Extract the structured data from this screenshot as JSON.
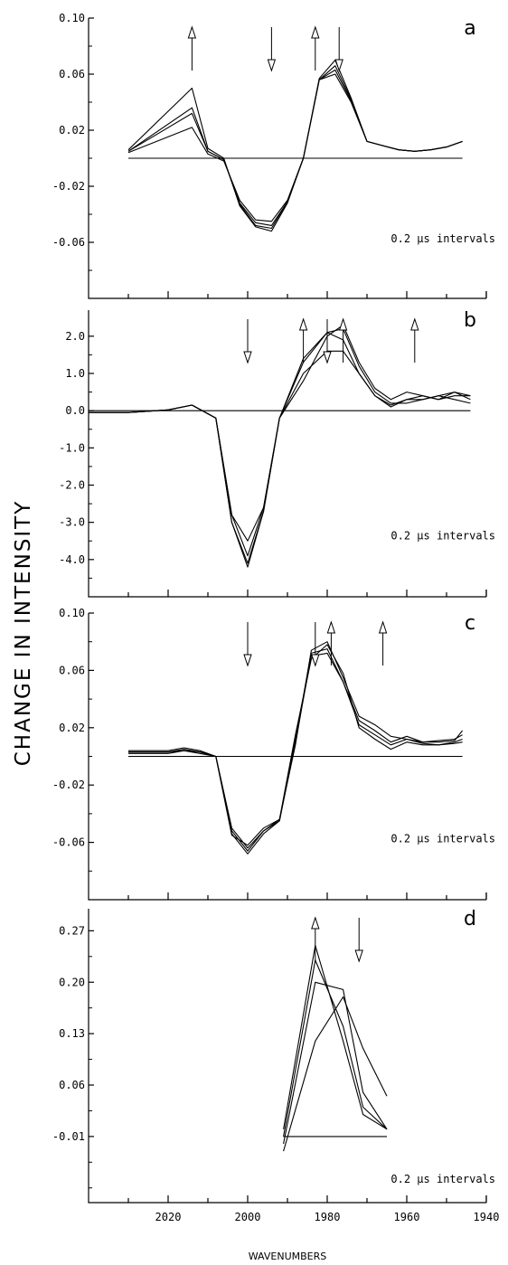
{
  "figure": {
    "ylabel": "CHANGE IN INTENSITY",
    "xlabel": "WAVENUMBERS",
    "x_tick_labels": [
      "2020",
      "2000",
      "1980",
      "1960",
      "1940"
    ]
  },
  "chart_data": [
    {
      "type": "line",
      "panel": "a",
      "note": "0.2 µs intervals",
      "ylim": [
        -0.1,
        0.1
      ],
      "xlim": [
        2040,
        1940
      ],
      "y_ticks": [
        0.1,
        0.06,
        0.02,
        -0.02,
        -0.06
      ],
      "y_tick_labels": [
        "0.10",
        "0.06",
        "0.02",
        "-0.02",
        "-0.06"
      ],
      "arrows": [
        {
          "x": 2014,
          "direction": "up"
        },
        {
          "x": 1994,
          "direction": "down"
        },
        {
          "x": 1983,
          "direction": "up"
        },
        {
          "x": 1977,
          "direction": "down"
        }
      ],
      "x": [
        2030,
        2014,
        2010,
        2006,
        2002,
        1998,
        1994,
        1990,
        1986,
        1982,
        1978,
        1974,
        1970,
        1966,
        1962,
        1958,
        1954,
        1950,
        1946
      ],
      "series": [
        {
          "values": [
            0.004,
            0.022,
            0.003,
            -0.002,
            -0.03,
            -0.044,
            -0.045,
            -0.03,
            0.0,
            0.056,
            0.06,
            0.04,
            0.012,
            0.009,
            0.006,
            0.005,
            0.006,
            0.008,
            0.012
          ]
        },
        {
          "values": [
            0.005,
            0.032,
            0.005,
            -0.001,
            -0.032,
            -0.046,
            -0.048,
            -0.031,
            0.0,
            0.056,
            0.063,
            0.041,
            0.012,
            0.009,
            0.006,
            0.005,
            0.006,
            0.008,
            0.012
          ]
        },
        {
          "values": [
            0.005,
            0.036,
            0.005,
            -0.001,
            -0.033,
            -0.048,
            -0.05,
            -0.031,
            0.0,
            0.056,
            0.066,
            0.042,
            0.012,
            0.009,
            0.006,
            0.005,
            0.006,
            0.008,
            0.012
          ]
        },
        {
          "values": [
            0.006,
            0.05,
            0.007,
            0.0,
            -0.034,
            -0.049,
            -0.052,
            -0.032,
            0.0,
            0.057,
            0.07,
            0.043,
            0.012,
            0.009,
            0.006,
            0.005,
            0.006,
            0.008,
            0.012
          ]
        },
        {
          "values": [
            0.0,
            0.0,
            0.0,
            0.0,
            0.0,
            0.0,
            0.0,
            0.0,
            0.0,
            0.0,
            0.0,
            0.0,
            0.0,
            0.0,
            0.0,
            0.0,
            0.0,
            0.0,
            0.0
          ]
        }
      ]
    },
    {
      "type": "line",
      "panel": "b",
      "note": "0.2 µs intervals",
      "ylim": [
        -5.0,
        2.7
      ],
      "xlim": [
        2040,
        1940
      ],
      "y_ticks": [
        2.0,
        1.0,
        0.0,
        -1.0,
        -2.0,
        -3.0,
        -4.0
      ],
      "y_tick_labels": [
        "2.0",
        "1.0",
        "0.0",
        "-1.0",
        "-2.0",
        "-3.0",
        "-4.0"
      ],
      "arrows": [
        {
          "x": 2000,
          "direction": "down"
        },
        {
          "x": 1986,
          "direction": "up"
        },
        {
          "x": 1980,
          "direction": "down"
        },
        {
          "x": 1976,
          "direction": "up"
        },
        {
          "x": 1958,
          "direction": "up"
        }
      ],
      "x": [
        2040,
        2030,
        2020,
        2014,
        2008,
        2004,
        2000,
        1996,
        1992,
        1986,
        1980,
        1976,
        1972,
        1968,
        1964,
        1960,
        1956,
        1952,
        1948,
        1944
      ],
      "series": [
        {
          "values": [
            -0.05,
            -0.05,
            0.02,
            0.15,
            -0.2,
            -3.0,
            -4.2,
            -2.7,
            -0.2,
            1.4,
            2.1,
            2.2,
            1.2,
            0.5,
            0.2,
            0.2,
            0.3,
            0.4,
            0.5,
            0.3
          ]
        },
        {
          "values": [
            -0.05,
            -0.05,
            0.02,
            0.15,
            -0.2,
            -3.0,
            -4.1,
            -2.7,
            -0.2,
            1.3,
            2.1,
            1.9,
            1.0,
            0.4,
            0.1,
            0.3,
            0.4,
            0.3,
            0.4,
            0.4
          ]
        },
        {
          "values": [
            -0.05,
            -0.05,
            0.02,
            0.15,
            -0.2,
            -2.8,
            -3.9,
            -2.6,
            -0.2,
            1.0,
            1.6,
            1.6,
            1.0,
            0.4,
            0.15,
            0.3,
            0.3,
            0.4,
            0.3,
            0.2
          ]
        },
        {
          "values": [
            -0.05,
            -0.05,
            0.02,
            0.15,
            -0.2,
            -2.8,
            -3.5,
            -2.6,
            -0.2,
            0.8,
            2.0,
            2.3,
            1.3,
            0.6,
            0.3,
            0.5,
            0.4,
            0.3,
            0.5,
            0.4
          ]
        },
        {
          "values": [
            0.0,
            0.0,
            0.0,
            0.0,
            0.0,
            0.0,
            0.0,
            0.0,
            0.0,
            0.0,
            0.0,
            0.0,
            0.0,
            0.0,
            0.0,
            0.0,
            0.0,
            0.0,
            0.0,
            0.0
          ]
        }
      ]
    },
    {
      "type": "line",
      "panel": "c",
      "note": "0.2 µs intervals",
      "ylim": [
        -0.1,
        0.1
      ],
      "xlim": [
        2040,
        1940
      ],
      "y_ticks": [
        0.1,
        0.06,
        0.02,
        -0.02,
        -0.06
      ],
      "y_tick_labels": [
        "0.10",
        "0.06",
        "0.02",
        "-0.02",
        "-0.06"
      ],
      "arrows": [
        {
          "x": 2000,
          "direction": "down"
        },
        {
          "x": 1983,
          "direction": "down"
        },
        {
          "x": 1979,
          "direction": "up"
        },
        {
          "x": 1966,
          "direction": "up"
        }
      ],
      "x": [
        2030,
        2020,
        2016,
        2012,
        2008,
        2004,
        2000,
        1996,
        1992,
        1988,
        1984,
        1980,
        1976,
        1972,
        1968,
        1964,
        1960,
        1956,
        1952,
        1948,
        1946
      ],
      "series": [
        {
          "values": [
            0.004,
            0.004,
            0.006,
            0.004,
            0.0,
            -0.052,
            -0.066,
            -0.052,
            -0.045,
            0.012,
            0.072,
            0.075,
            0.052,
            0.022,
            0.015,
            0.008,
            0.012,
            0.01,
            0.01,
            0.011,
            0.018
          ]
        },
        {
          "values": [
            0.003,
            0.003,
            0.005,
            0.003,
            0.0,
            -0.054,
            -0.068,
            -0.054,
            -0.045,
            0.01,
            0.07,
            0.072,
            0.052,
            0.025,
            0.018,
            0.01,
            0.014,
            0.01,
            0.011,
            0.012,
            0.015
          ]
        },
        {
          "values": [
            0.002,
            0.002,
            0.004,
            0.003,
            0.0,
            -0.055,
            -0.062,
            -0.05,
            -0.044,
            0.008,
            0.074,
            0.08,
            0.055,
            0.028,
            0.022,
            0.014,
            0.012,
            0.009,
            0.008,
            0.01,
            0.012
          ]
        },
        {
          "values": [
            0.003,
            0.003,
            0.004,
            0.002,
            0.0,
            -0.05,
            -0.064,
            -0.052,
            -0.044,
            0.015,
            0.068,
            0.078,
            0.058,
            0.02,
            0.012,
            0.005,
            0.01,
            0.008,
            0.008,
            0.009,
            0.01
          ]
        },
        {
          "values": [
            0.0,
            0.0,
            0.0,
            0.0,
            0.0,
            0.0,
            0.0,
            0.0,
            0.0,
            0.0,
            0.0,
            0.0,
            0.0,
            0.0,
            0.0,
            0.0,
            0.0,
            0.0,
            0.0,
            0.0,
            0.0
          ]
        }
      ]
    },
    {
      "type": "line",
      "panel": "d",
      "note": "0.2 µs intervals",
      "ylim": [
        -0.1,
        0.3
      ],
      "xlim": [
        2040,
        1940
      ],
      "y_ticks": [
        0.27,
        0.2,
        0.13,
        0.06,
        -0.01
      ],
      "y_tick_labels": [
        "0.27",
        "0.20",
        "0.13",
        "0.06",
        "-0.01"
      ],
      "arrows": [
        {
          "x": 1983,
          "direction": "up"
        },
        {
          "x": 1972,
          "direction": "down"
        }
      ],
      "x": [
        1991,
        1983,
        1976,
        1971,
        1965
      ],
      "series": [
        {
          "values": [
            0.0,
            0.25,
            0.12,
            0.02,
            0.0
          ]
        },
        {
          "values": [
            -0.01,
            0.23,
            0.14,
            0.03,
            0.0
          ]
        },
        {
          "values": [
            -0.02,
            0.2,
            0.19,
            0.05,
            0.0
          ]
        },
        {
          "values": [
            -0.03,
            0.12,
            0.18,
            0.11,
            0.045
          ]
        },
        {
          "values": [
            -0.01,
            -0.01,
            -0.01,
            -0.01,
            -0.01
          ]
        }
      ]
    }
  ]
}
